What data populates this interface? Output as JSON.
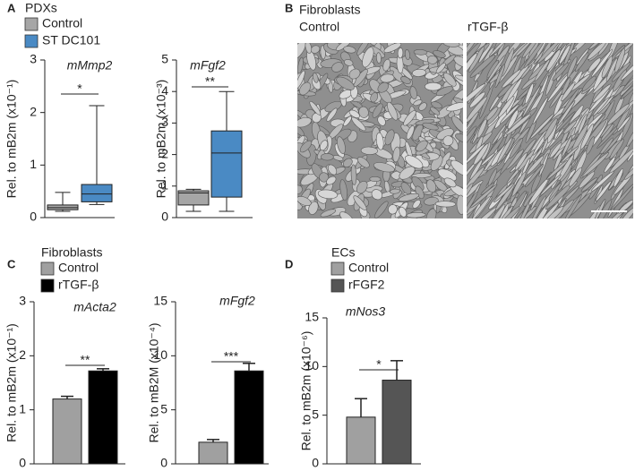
{
  "chart_data": [
    {
      "type": "box",
      "panel": "A",
      "legend_title": "PDXs",
      "title": "mMmp2",
      "ylabel": "Rel. to mB2m (x10⁻¹)",
      "ylim": [
        0,
        3
      ],
      "yticks": [
        0,
        1,
        2,
        3
      ],
      "annotation": "*",
      "series": [
        {
          "name": "Control",
          "color": "#a6a6a6",
          "low": 0.12,
          "q1": 0.15,
          "median": 0.19,
          "q3": 0.24,
          "high": 0.48
        },
        {
          "name": "ST DC101",
          "color": "#4a8ac4",
          "low": 0.25,
          "q1": 0.3,
          "median": 0.45,
          "q3": 0.63,
          "high": 2.13
        }
      ]
    },
    {
      "type": "box",
      "title": "mFgf2",
      "ylabel": "Rel. to mB2m (x10⁻³)",
      "ylim": [
        0,
        5
      ],
      "yticks": [
        0,
        1,
        2,
        3,
        4,
        5
      ],
      "annotation": "**",
      "series": [
        {
          "color": "#a6a6a6",
          "low": 0.2,
          "q1": 0.4,
          "median": 0.78,
          "q3": 0.85,
          "high": 0.9
        },
        {
          "color": "#4a8ac4",
          "low": 0.2,
          "q1": 0.65,
          "median": 2.05,
          "q3": 2.75,
          "high": 4.0
        }
      ]
    },
    {
      "type": "bar",
      "panel": "C",
      "legend_title": "Fibroblasts",
      "title": "mActa2",
      "ylabel": "Rel. to mB2m (x10⁻¹)",
      "ylim": [
        0,
        3
      ],
      "yticks": [
        0,
        1,
        2,
        3
      ],
      "annotation": "**",
      "series": [
        {
          "name": "Control",
          "color": "#a0a0a0",
          "values": [
            1.2
          ],
          "errors": [
            0.05
          ]
        },
        {
          "name": "rTGF-β",
          "color": "#000000",
          "values": [
            1.72
          ],
          "errors": [
            0.04
          ]
        }
      ]
    },
    {
      "type": "bar",
      "title": "mFgf2",
      "ylabel": "Rel. to mB2M (x10⁻⁴)",
      "ylim": [
        0,
        15
      ],
      "yticks": [
        0,
        5,
        10,
        15
      ],
      "annotation": "***",
      "series": [
        {
          "color": "#a0a0a0",
          "values": [
            2.0
          ],
          "errors": [
            0.25
          ]
        },
        {
          "color": "#000000",
          "values": [
            8.6
          ],
          "errors": [
            0.7
          ]
        }
      ]
    },
    {
      "type": "bar",
      "panel": "D",
      "legend_title": "ECs",
      "title": "mNos3",
      "ylabel": "Rel. to mB2m (x10⁻⁶)",
      "ylim": [
        0,
        15
      ],
      "yticks": [
        0,
        5,
        10,
        15
      ],
      "annotation": "*",
      "series": [
        {
          "name": "Control",
          "color": "#a0a0a0",
          "values": [
            4.8
          ],
          "errors": [
            1.9
          ]
        },
        {
          "name": "rFGF2",
          "color": "#555555",
          "values": [
            8.6
          ],
          "errors": [
            2.0
          ]
        }
      ]
    }
  ],
  "images": {
    "panel": "B",
    "title": "Fibroblasts",
    "labels": [
      "Control",
      "rTGF-β"
    ]
  }
}
